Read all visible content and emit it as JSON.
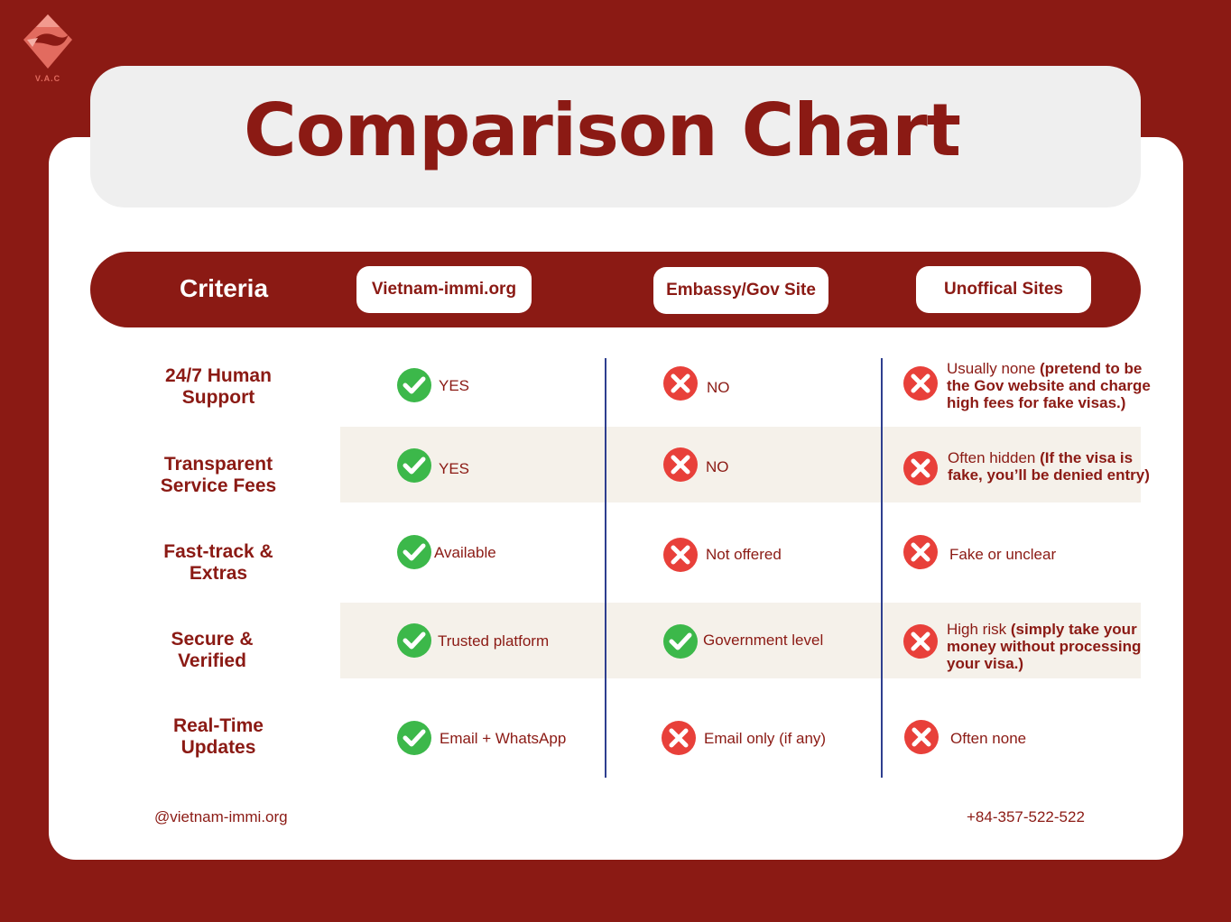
{
  "logo": {
    "text": "V.A.C"
  },
  "title": "Comparison Chart",
  "header": {
    "criteria_label": "Criteria",
    "columns": [
      "Vietnam-immi.org",
      "Embassy/Gov Site",
      "Unoffical Sites"
    ]
  },
  "rows": [
    {
      "criterion": [
        "24/7 Human",
        "Support"
      ],
      "immi": {
        "status": "check",
        "text": "YES"
      },
      "gov": {
        "status": "cross",
        "text": "NO"
      },
      "unofficial": {
        "status": "cross",
        "plain": "Usually none ",
        "bold": "(pretend to be the Gov website and charge high fees for fake visas.)"
      }
    },
    {
      "criterion": [
        "Transparent",
        "Service Fees"
      ],
      "immi": {
        "status": "check",
        "text": "YES"
      },
      "gov": {
        "status": "cross",
        "text": "NO"
      },
      "unofficial": {
        "status": "cross",
        "plain": " Often hidden ",
        "bold": "(If the visa is fake, you’ll be denied entry)"
      }
    },
    {
      "criterion": [
        "Fast-track &",
        "Extras"
      ],
      "immi": {
        "status": "check",
        "text": "Available"
      },
      "gov": {
        "status": "cross",
        "text": "Not offered"
      },
      "unofficial": {
        "status": "cross",
        "plain": "Fake or unclear",
        "bold": ""
      }
    },
    {
      "criterion": [
        "Secure &",
        "Verified"
      ],
      "immi": {
        "status": "check",
        "text": "Trusted platform"
      },
      "gov": {
        "status": "check",
        "text": "Government level"
      },
      "unofficial": {
        "status": "cross",
        "plain": "High risk ",
        "bold": "(simply take your money without processing your visa.)"
      }
    },
    {
      "criterion": [
        "Real-Time",
        "Updates"
      ],
      "immi": {
        "status": "check",
        "text": "Email + WhatsApp"
      },
      "gov": {
        "status": "cross",
        "text": "Email only (if any)"
      },
      "unofficial": {
        "status": "cross",
        "plain": "Often none",
        "bold": ""
      }
    }
  ],
  "footer": {
    "handle": "@vietnam-immi.org",
    "phone": "+84-357-522-522"
  },
  "colors": {
    "brand": "#8b1a14",
    "check": "#3cb84a",
    "cross": "#e8403a",
    "band": "#f5f1ea",
    "divider": "#2e3f8f"
  }
}
